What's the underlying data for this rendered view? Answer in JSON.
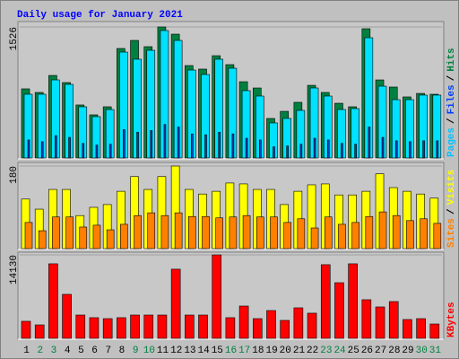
{
  "title": "Daily usage for January 2021",
  "chart_data": [
    {
      "type": "bar",
      "legend_separator": "/",
      "ylim": [
        0,
        1526
      ],
      "yticks": [
        1526
      ],
      "series": [
        {
          "name": "Pages",
          "color": "#0040c0",
          "label_color": "#00c0ff",
          "values": [
            210,
            190,
            260,
            240,
            170,
            150,
            160,
            330,
            300,
            320,
            390,
            360,
            280,
            270,
            300,
            280,
            230,
            210,
            130,
            140,
            160,
            230,
            210,
            170,
            160,
            360,
            240,
            200,
            190,
            200,
            200
          ]
        },
        {
          "name": "Files",
          "color": "#00e0ff",
          "label_color": "#0040ff",
          "values": [
            742,
            742,
            909,
            857,
            596,
            481,
            564,
            1233,
            1150,
            1254,
            1484,
            1369,
            1024,
            972,
            1150,
            1045,
            784,
            721,
            408,
            460,
            554,
            815,
            721,
            564,
            575,
            1400,
            836,
            679,
            679,
            732,
            732
          ]
        },
        {
          "name": "Hits",
          "color": "#008040",
          "label_color": "#008040",
          "values": [
            805,
            763,
            961,
            878,
            617,
            502,
            596,
            1275,
            1369,
            1296,
            1526,
            1442,
            1076,
            1035,
            1191,
            1087,
            888,
            815,
            460,
            543,
            648,
            846,
            763,
            637,
            596,
            1505,
            909,
            826,
            711,
            752,
            742
          ]
        }
      ]
    },
    {
      "type": "bar",
      "legend_separator": "/",
      "ylim": [
        0,
        180
      ],
      "yticks": [
        180
      ],
      "series": [
        {
          "name": "Sites",
          "color": "#ff8000",
          "label_color": "#ff8000",
          "values": [
            57,
            39,
            69,
            69,
            47,
            51,
            41,
            53,
            72,
            78,
            72,
            78,
            70,
            70,
            67,
            69,
            72,
            69,
            69,
            57,
            65,
            45,
            69,
            53,
            57,
            70,
            80,
            72,
            61,
            65,
            55
          ]
        },
        {
          "name": "Visits",
          "color": "#ffff00",
          "label_color": "#ffff00",
          "values": [
            108,
            86,
            129,
            129,
            72,
            90,
            96,
            125,
            157,
            129,
            157,
            180,
            129,
            119,
            125,
            143,
            141,
            129,
            129,
            96,
            125,
            139,
            141,
            117,
            117,
            125,
            163,
            133,
            125,
            119,
            110
          ]
        }
      ]
    },
    {
      "type": "bar",
      "ylim": [
        0,
        14130
      ],
      "yticks": [
        14130
      ],
      "categories": [
        "1",
        "2",
        "3",
        "4",
        "5",
        "6",
        "7",
        "8",
        "9",
        "10",
        "11",
        "12",
        "13",
        "14",
        "15",
        "16",
        "17",
        "18",
        "19",
        "20",
        "21",
        "22",
        "23",
        "24",
        "25",
        "26",
        "27",
        "28",
        "29",
        "30",
        "31"
      ],
      "category_colors": [
        "#000000",
        "#008040",
        "#008040",
        "#000000",
        "#000000",
        "#000000",
        "#000000",
        "#000000",
        "#008040",
        "#008040",
        "#000000",
        "#000000",
        "#000000",
        "#000000",
        "#000000",
        "#008040",
        "#008040",
        "#000000",
        "#000000",
        "#000000",
        "#000000",
        "#000000",
        "#008040",
        "#008040",
        "#000000",
        "#000000",
        "#000000",
        "#000000",
        "#000000",
        "#008040",
        "#008040"
      ],
      "series": [
        {
          "name": "KBytes",
          "color": "#ff0000",
          "label_color": "#ff0000",
          "values": [
            2890,
            2280,
            12620,
            7450,
            3950,
            3500,
            3340,
            3500,
            3950,
            3950,
            3950,
            11710,
            3950,
            3950,
            14130,
            3500,
            5470,
            3340,
            4710,
            3040,
            5170,
            4260,
            12470,
            9420,
            12620,
            6540,
            5320,
            6230,
            3190,
            3340,
            2430
          ]
        }
      ]
    }
  ]
}
